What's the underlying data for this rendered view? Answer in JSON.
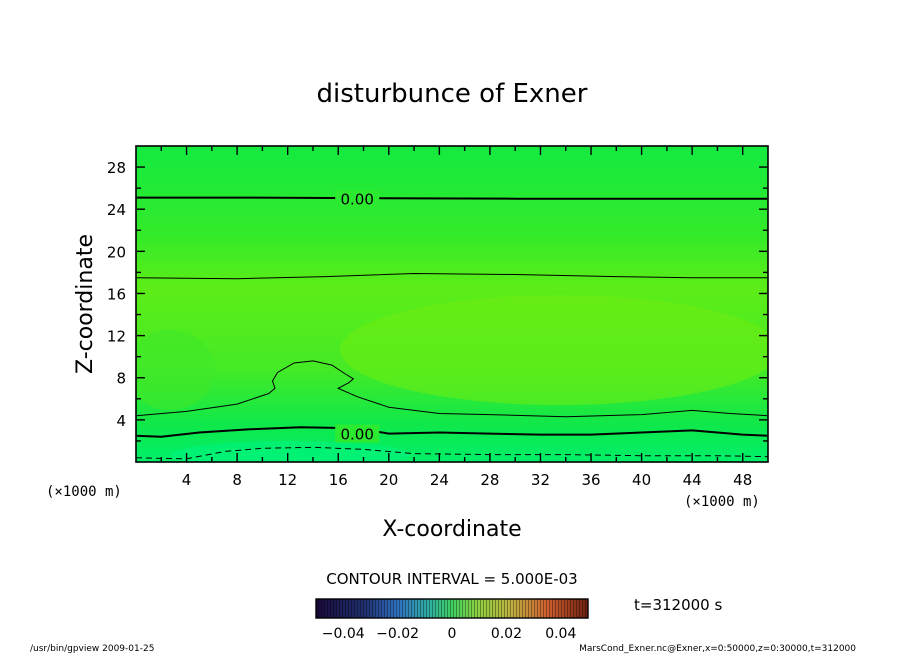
{
  "chart_data": {
    "type": "heatmap",
    "title": "disturbunce of Exner",
    "xlabel": "X-coordinate",
    "ylabel": "Z-coordinate",
    "x_unit_label": "(×1000 m)",
    "y_unit_label": "(×1000 m)",
    "xlim": [
      0,
      50
    ],
    "ylim": [
      0,
      30
    ],
    "x_ticks": [
      4,
      8,
      12,
      16,
      20,
      24,
      28,
      32,
      36,
      40,
      44,
      48
    ],
    "y_ticks": [
      4,
      8,
      12,
      16,
      20,
      24,
      28
    ],
    "contour_interval_text": "CONTOUR INTERVAL = 5.000E-03",
    "time_text": "t=312000 s",
    "colorbar_ticks": [
      "-0.04",
      "-0.02",
      "0",
      "0.02",
      "0.04"
    ],
    "colorbar_range": [
      -0.05,
      0.05
    ],
    "contour_labels": [
      {
        "text": "0.00",
        "x": 17.5,
        "y": 25.0
      },
      {
        "text": "0.00",
        "x": 17.5,
        "y": 2.7
      }
    ],
    "contours": [
      {
        "kind": "zero",
        "points": [
          [
            0,
            25.1
          ],
          [
            8,
            25.1
          ],
          [
            17.5,
            25.05
          ],
          [
            30,
            25.0
          ],
          [
            40,
            25.0
          ],
          [
            50,
            25.0
          ]
        ]
      },
      {
        "kind": "positive",
        "points": [
          [
            0,
            17.5
          ],
          [
            8,
            17.4
          ],
          [
            15,
            17.6
          ],
          [
            22,
            17.9
          ],
          [
            30,
            17.8
          ],
          [
            38,
            17.6
          ],
          [
            44,
            17.5
          ],
          [
            50,
            17.5
          ]
        ]
      },
      {
        "kind": "positive",
        "points": [
          [
            0,
            4.4
          ],
          [
            4,
            4.8
          ],
          [
            8,
            5.5
          ],
          [
            10.5,
            6.5
          ],
          [
            11,
            7.0
          ],
          [
            10.8,
            7.7
          ],
          [
            11.2,
            8.5
          ],
          [
            12.5,
            9.4
          ],
          [
            14,
            9.6
          ],
          [
            15.5,
            9.2
          ],
          [
            16.5,
            8.4
          ],
          [
            17.2,
            7.9
          ],
          [
            16.8,
            7.5
          ],
          [
            16,
            7.0
          ],
          [
            17.5,
            6.2
          ],
          [
            20,
            5.2
          ],
          [
            24,
            4.6
          ],
          [
            28,
            4.5
          ],
          [
            34,
            4.3
          ],
          [
            40,
            4.5
          ],
          [
            44,
            4.9
          ],
          [
            47,
            4.6
          ],
          [
            50,
            4.4
          ]
        ]
      },
      {
        "kind": "zero",
        "points": [
          [
            0,
            2.5
          ],
          [
            2,
            2.4
          ],
          [
            5,
            2.8
          ],
          [
            9,
            3.1
          ],
          [
            13,
            3.3
          ],
          [
            17.5,
            3.2
          ],
          [
            20,
            2.7
          ],
          [
            24,
            2.8
          ],
          [
            28,
            2.7
          ],
          [
            32,
            2.6
          ],
          [
            36,
            2.6
          ],
          [
            40,
            2.8
          ],
          [
            44,
            3.0
          ],
          [
            48,
            2.6
          ],
          [
            50,
            2.5
          ]
        ]
      },
      {
        "kind": "negative",
        "points": [
          [
            0,
            0.4
          ],
          [
            4,
            0.3
          ],
          [
            7,
            1.0
          ],
          [
            10,
            1.3
          ],
          [
            14,
            1.4
          ],
          [
            18,
            1.2
          ],
          [
            22,
            0.8
          ],
          [
            28,
            0.7
          ],
          [
            34,
            0.7
          ],
          [
            40,
            0.6
          ],
          [
            46,
            0.6
          ],
          [
            50,
            0.5
          ]
        ]
      }
    ],
    "colors": {
      "field_low": "#00e850",
      "field_mid": "#2bec2b",
      "field_high": "#66ec18",
      "field_bottom": "#00f070"
    }
  },
  "footer": {
    "left": "/usr/bin/gpview  2009-01-25",
    "right": "MarsCond_Exner.nc@Exner,x=0:50000,z=0:30000,t=312000"
  }
}
